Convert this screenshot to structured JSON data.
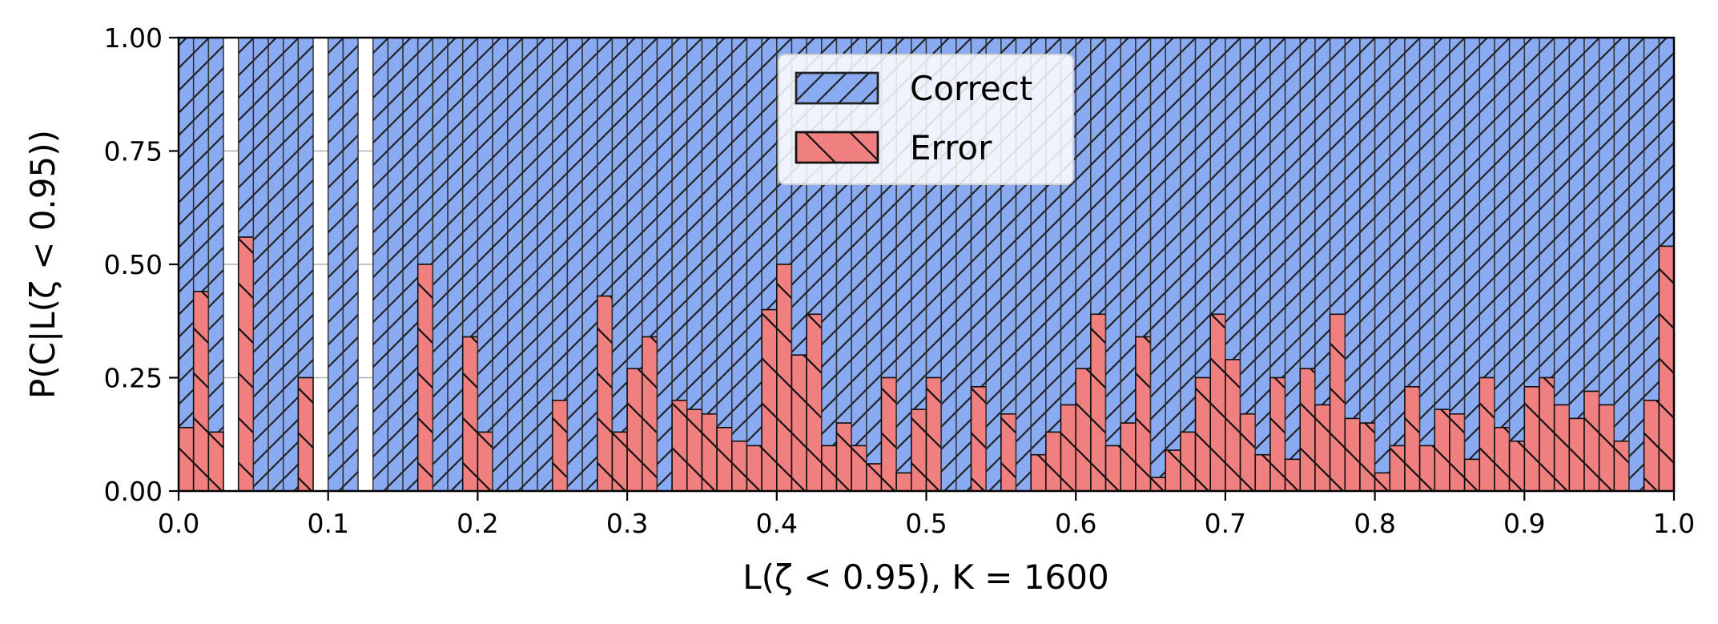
{
  "chart_data": {
    "type": "bar",
    "stacked": true,
    "bin_width": 0.01,
    "xlabel": "L(ζ < 0.95), K = 1600",
    "ylabel": "P(C|L(ζ < 0.95))",
    "xlim": [
      0,
      1
    ],
    "ylim": [
      0,
      1
    ],
    "xticks": [
      "0.0",
      "0.1",
      "0.2",
      "0.3",
      "0.4",
      "0.5",
      "0.6",
      "0.7",
      "0.8",
      "0.9",
      "1.0"
    ],
    "yticks": [
      "0.00",
      "0.25",
      "0.50",
      "0.75",
      "1.00"
    ],
    "grid": true,
    "legend_position": "top-center",
    "series": [
      {
        "name": "Correct",
        "color": "#8aabf2",
        "hatch": "forward-diagonal"
      },
      {
        "name": "Error",
        "color": "#f08080",
        "hatch": "back-diagonal"
      }
    ],
    "empty_bins": [
      3,
      9,
      12
    ],
    "error_values": [
      0.14,
      0.44,
      0.13,
      0,
      0.56,
      0,
      0,
      0,
      0.25,
      0,
      0,
      0,
      0,
      0,
      0,
      0,
      0.5,
      0,
      0,
      0.34,
      0.13,
      0,
      0,
      0,
      0,
      0.2,
      0,
      0,
      0.43,
      0.13,
      0.27,
      0.34,
      0,
      0.2,
      0.18,
      0.17,
      0.14,
      0.11,
      0.1,
      0.4,
      0.5,
      0.3,
      0.39,
      0.1,
      0.15,
      0.1,
      0.06,
      0.25,
      0.04,
      0.18,
      0.25,
      0,
      0,
      0.23,
      0,
      0.17,
      0,
      0.08,
      0.13,
      0.19,
      0.27,
      0.39,
      0.1,
      0.15,
      0.34,
      0.03,
      0.09,
      0.13,
      0.25,
      0.39,
      0.29,
      0.17,
      0.08,
      0.25,
      0.07,
      0.27,
      0.19,
      0.39,
      0.16,
      0.15,
      0.04,
      0.1,
      0.23,
      0.1,
      0.18,
      0.17,
      0.07,
      0.25,
      0.14,
      0.11,
      0.23,
      0.25,
      0.19,
      0.16,
      0.22,
      0.19,
      0.11,
      0,
      0.2,
      0.54
    ]
  }
}
